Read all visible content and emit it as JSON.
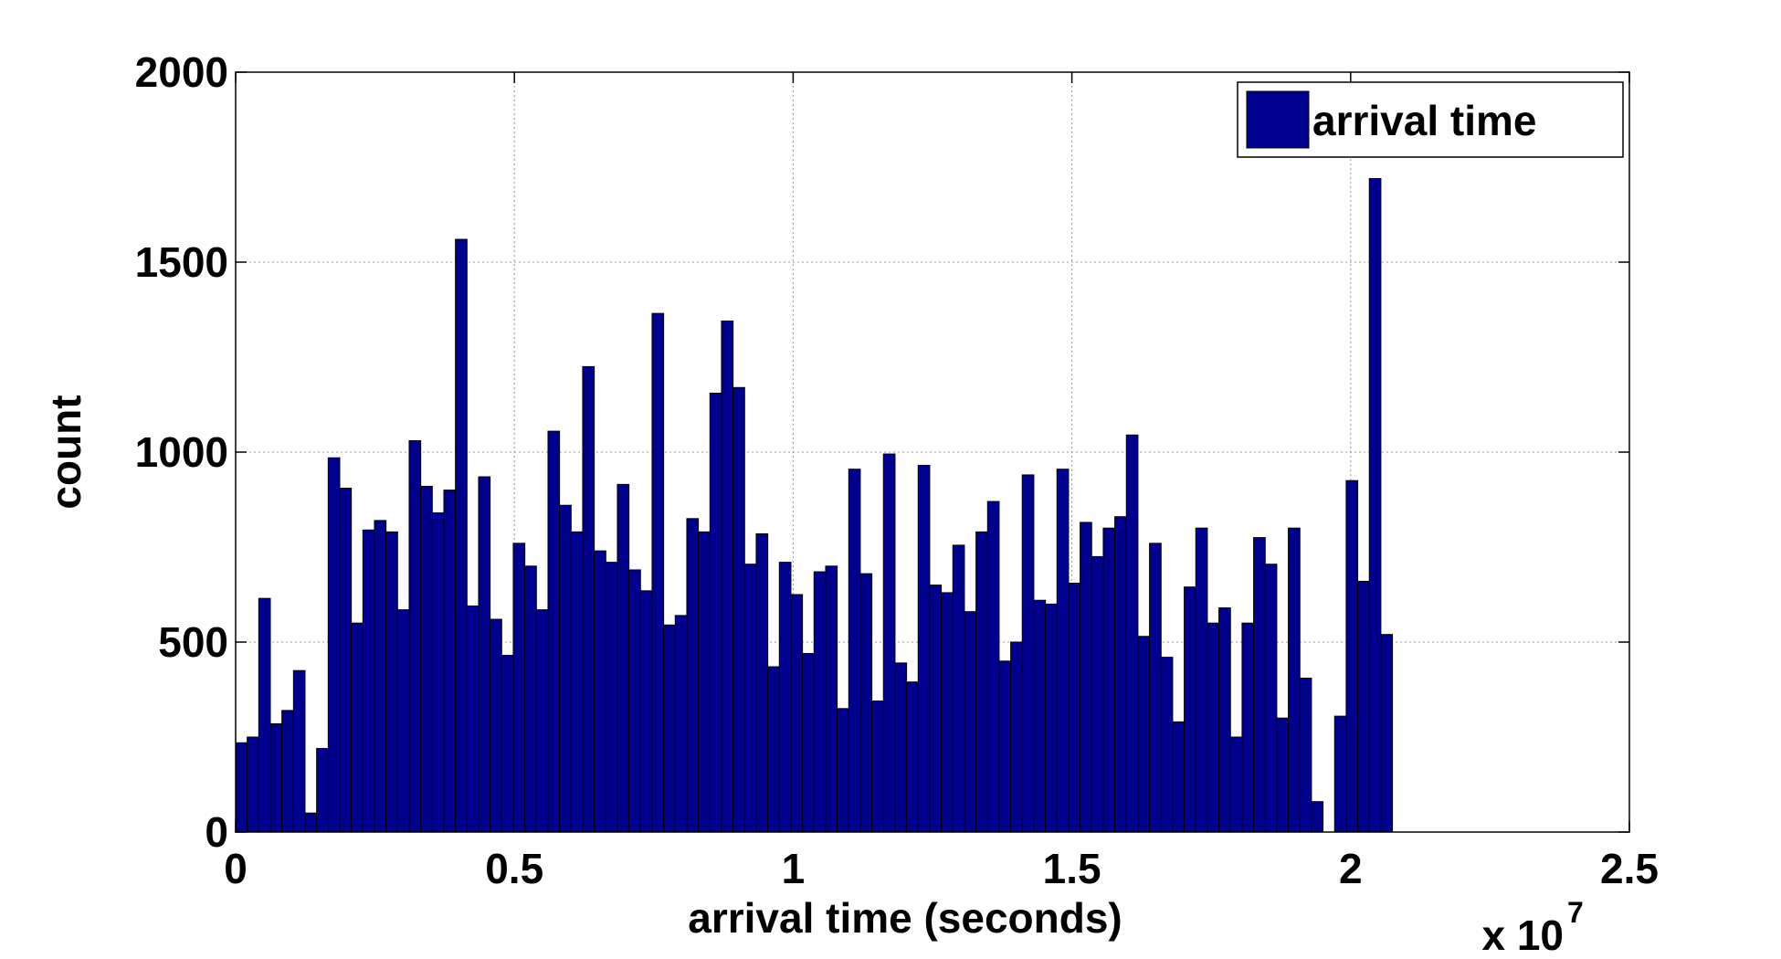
{
  "chart_data": {
    "type": "histogram",
    "xlabel": "arrival time (seconds)",
    "ylabel": "count",
    "x_scale_label": "x 10",
    "x_scale_exponent": "7",
    "bins": [
      0,
      207500,
      415000,
      622500,
      830000,
      1037500,
      1245000,
      1452500,
      1660000,
      1867500,
      2075000,
      2282500,
      2490000,
      2697500,
      2905000,
      3112500,
      3320000,
      3527500,
      3735000,
      3942500,
      4150000,
      4357500,
      4565000,
      4772500,
      4980000,
      5187500,
      5395000,
      5602500,
      5810000,
      6017500,
      6225000,
      6432500,
      6640000,
      6847500,
      7055000,
      7262500,
      7470000,
      7677500,
      7885000,
      8092500,
      8300000,
      8507500,
      8715000,
      8922500,
      9130000,
      9337500,
      9545000,
      9752500,
      9960000,
      10167500,
      10375000,
      10582500,
      10790000,
      10997500,
      11205000,
      11412500,
      11620000,
      11827500,
      12035000,
      12242500,
      12450000,
      12657500,
      12865000,
      13072500,
      13280000,
      13487500,
      13695000,
      13902500,
      14110000,
      14317500,
      14525000,
      14732500,
      14940000,
      15147500,
      15355000,
      15562500,
      15770000,
      15977500,
      16185000,
      16392500,
      16600000,
      16807500,
      17015000,
      17222500,
      17430000,
      17637500,
      17845000,
      18052500,
      18260000,
      18467500,
      18675000,
      18882500,
      19090000,
      19297500,
      19505000,
      19712500,
      19920000,
      20127500,
      20335000,
      20542500,
      20750000
    ],
    "series": [
      {
        "name": "arrival time",
        "color": "#00008f",
        "values": [
          235,
          250,
          615,
          285,
          320,
          425,
          50,
          220,
          985,
          905,
          550,
          795,
          820,
          790,
          585,
          1030,
          910,
          840,
          900,
          1560,
          595,
          935,
          560,
          465,
          760,
          700,
          585,
          1055,
          860,
          790,
          1225,
          740,
          710,
          915,
          690,
          635,
          1365,
          545,
          570,
          825,
          790,
          1155,
          1345,
          1170,
          705,
          785,
          435,
          710,
          625,
          470,
          685,
          700,
          325,
          955,
          680,
          345,
          995,
          445,
          395,
          965,
          650,
          630,
          755,
          580,
          790,
          870,
          450,
          500,
          940,
          610,
          600,
          955,
          655,
          815,
          725,
          800,
          830,
          1045,
          515,
          760,
          460,
          290,
          645,
          800,
          550,
          590,
          250,
          550,
          775,
          705,
          300,
          800,
          405,
          80,
          0,
          305,
          925,
          660,
          1720,
          520
        ]
      }
    ],
    "xlim": [
      0,
      25000000
    ],
    "xticks": [
      0,
      {
        "value": 5000000,
        "label": "0.5"
      },
      {
        "value": 10000000,
        "label": "1"
      },
      {
        "value": 15000000,
        "label": "1.5"
      },
      {
        "value": 20000000,
        "label": "2"
      },
      {
        "value": 25000000,
        "label": "2.5"
      }
    ],
    "ylim": [
      0,
      2000
    ],
    "yticks": [
      0,
      500,
      1000,
      1500,
      2000
    ],
    "grid": true,
    "legend": "upper right"
  }
}
